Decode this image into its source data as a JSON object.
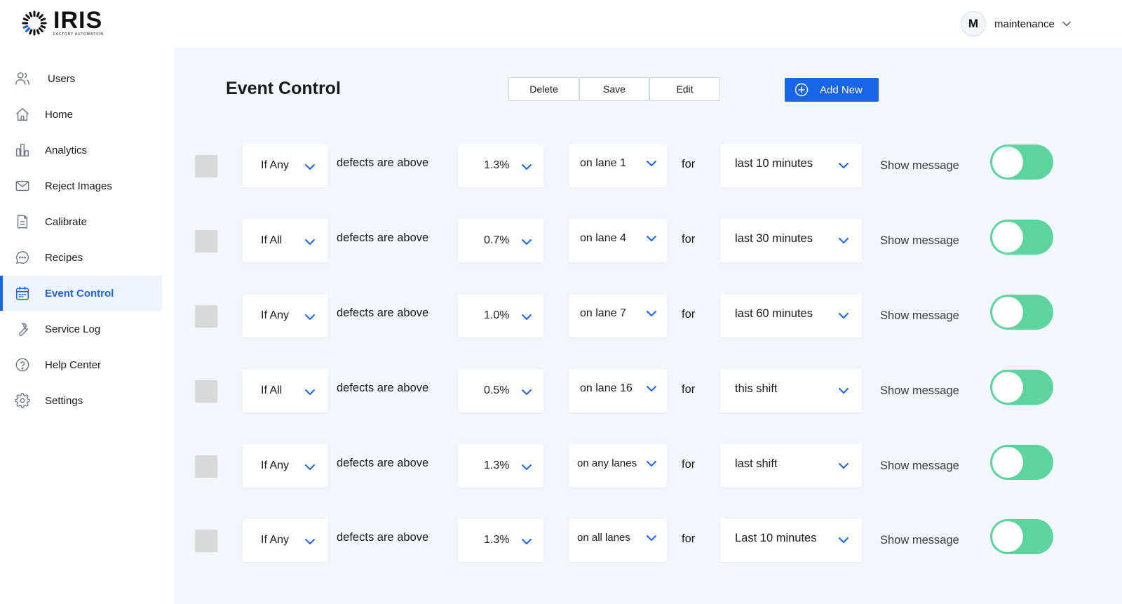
{
  "brand": {
    "name": "IRIS",
    "tagline": "FACTORY AUTOMATION",
    "accent": "#1a64e8",
    "toggle_color": "#5dd39e"
  },
  "user": {
    "initial": "M",
    "name": "maintenance"
  },
  "sidebar": {
    "items": [
      {
        "label": "Users",
        "icon": "users-icon"
      },
      {
        "label": "Home",
        "icon": "home-icon"
      },
      {
        "label": "Analytics",
        "icon": "bar-chart-icon"
      },
      {
        "label": "Reject Images",
        "icon": "mail-icon"
      },
      {
        "label": "Calibrate",
        "icon": "document-icon"
      },
      {
        "label": "Recipes",
        "icon": "chat-bubble-icon"
      },
      {
        "label": "Event Control",
        "icon": "calendar-icon",
        "active": true
      },
      {
        "label": "Service Log",
        "icon": "wrench-icon"
      },
      {
        "label": "Help Center",
        "icon": "help-circle-icon"
      },
      {
        "label": "Settings",
        "icon": "gear-icon"
      }
    ]
  },
  "main": {
    "title": "Event Control",
    "buttons": {
      "delete": "Delete",
      "save": "Save",
      "edit": "Edit",
      "add_new": "Add New"
    },
    "labels": {
      "defects": "defects are above",
      "for": "for",
      "show_message": "Show message"
    },
    "rules": [
      {
        "condition": "If Any",
        "threshold": "1.3%",
        "lane": "on lane 1",
        "window": "last 10 minutes",
        "enabled": true
      },
      {
        "condition": "If All",
        "threshold": "0.7%",
        "lane": "on lane 4",
        "window": "last 30 minutes",
        "enabled": true
      },
      {
        "condition": "If Any",
        "threshold": "1.0%",
        "lane": "on lane 7",
        "window": "last 60 minutes",
        "enabled": true
      },
      {
        "condition": "If All",
        "threshold": "0.5%",
        "lane": "on lane 16",
        "window": "this shift",
        "enabled": true
      },
      {
        "condition": "If Any",
        "threshold": "1.3%",
        "lane": "on any lanes",
        "window": "last shift",
        "enabled": true
      },
      {
        "condition": "If Any",
        "threshold": "1.3%",
        "lane": "on all lanes",
        "window": "Last 10 minutes",
        "enabled": true
      }
    ]
  }
}
